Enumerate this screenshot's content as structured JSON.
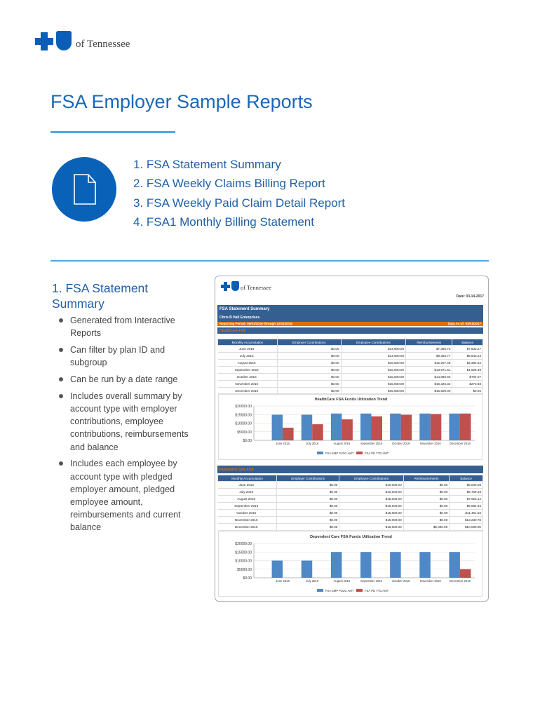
{
  "logo": {
    "text": "of Tennessee"
  },
  "page_title": "FSA Employer Sample Reports",
  "toc": [
    "1. FSA Statement Summary",
    "2. FSA Weekly Claims Billing Report",
    "3. FSA Weekly Paid Claim Detail Report",
    "4. FSA1 Monthly Billing Statement"
  ],
  "section": {
    "title": "1. FSA Statement Summary",
    "bullets": [
      "Generated from Interactive Reports",
      "Can filter by plan ID and subgroup",
      "Can be run by a date range",
      "Includes overall summary by account type with employer contributions, employee contributions, reimbursements and balance",
      "Includes each employee by account type with pledged employer amount, pledged employee amount, reimbursements and current balance"
    ]
  },
  "report": {
    "logo_text": "of Tennessee",
    "date": "Date: 03-14-2017",
    "title": "FSA Statement Summary",
    "company": "Chris B Hall Enterprises",
    "period": "Reporting Period: 06/01/2016 through 12/31/2016",
    "data_as_of": "Data As of: 03/01/2017",
    "columns": [
      "Monthly Accumulation",
      "Employer Contributions",
      "Employee Contributions",
      "Reimbursements",
      "Balance"
    ],
    "healthcare": {
      "label": "HealthCare FSA",
      "rows": [
        [
          "June 2016",
          "$0.00",
          "$14,900.00",
          "$7,366.73",
          "$7,533.27"
        ],
        [
          "July 2016",
          "$0.00",
          "$14,900.00",
          "$9,356.77",
          "$5,543.23"
        ],
        [
          "August 2016",
          "$0.00",
          "$15,600.00",
          "$12,207.48",
          "$3,392.52"
        ],
        [
          "September 2016",
          "$0.00",
          "$15,600.00",
          "$13,971.61",
          "$1,628.39"
        ],
        [
          "October 2016",
          "$0.00",
          "$15,600.00",
          "$14,895.93",
          "$704.07"
        ],
        [
          "November 2016",
          "$0.00",
          "$15,600.00",
          "$15,326.32",
          "$273.68"
        ],
        [
          "December 2016",
          "$0.00",
          "$15,600.00",
          "$15,600.00",
          "$0.00"
        ]
      ]
    },
    "dependent": {
      "label": "Dependent Care FSA",
      "rows": [
        [
          "June 2016",
          "$0.00",
          "$10,000.00",
          "$0.00",
          "$5,000.06"
        ],
        [
          "July 2016",
          "$0.00",
          "$10,000.00",
          "$0.00",
          "$5,769.28"
        ],
        [
          "August 2016",
          "$0.00",
          "$15,000.00",
          "$0.00",
          "$7,923.12"
        ],
        [
          "September 2016",
          "$0.00",
          "$15,000.00",
          "$0.00",
          "$9,692.34"
        ],
        [
          "October 2016",
          "$0.00",
          "$15,000.00",
          "$0.00",
          "$11,461.56"
        ],
        [
          "November 2016",
          "$0.00",
          "$15,000.00",
          "$0.00",
          "$13,230.78"
        ],
        [
          "December 2016",
          "$0.00",
          "$15,000.00",
          "$5,000.00",
          "$10,000.00"
        ]
      ]
    }
  },
  "chart_data": [
    {
      "type": "bar",
      "title": "HealthCare FSA Funds Utilization Trend",
      "categories": [
        "June 2016",
        "July 2016",
        "August 2016",
        "September 2016",
        "October 2016",
        "November 2016",
        "December 2016"
      ],
      "yticks": [
        "$0.00",
        "$5000.00",
        "$10000.00",
        "$15000.00",
        "$20000.00"
      ],
      "ylim": [
        0,
        20000
      ],
      "series": [
        {
          "name": "FSA EMP PLDG AMT",
          "color": "#4f88c6",
          "values": [
            14900,
            14900,
            15600,
            15600,
            15600,
            15600,
            15600
          ]
        },
        {
          "name": "FSA PD YTD AMT",
          "color": "#c0504d",
          "values": [
            7367,
            9357,
            12207,
            13972,
            14896,
            15326,
            15600
          ]
        }
      ]
    },
    {
      "type": "bar",
      "title": "Dependent Care FSA Funds Utilization Trend",
      "categories": [
        "June 2016",
        "July 2016",
        "August 2016",
        "September 2016",
        "October 2016",
        "November 2016",
        "December 2016"
      ],
      "yticks": [
        "$0.00",
        "$5000.00",
        "$10000.00",
        "$15000.00",
        "$20000.00"
      ],
      "ylim": [
        0,
        20000
      ],
      "series": [
        {
          "name": "FSA EMP PLDG AMT",
          "color": "#4f88c6",
          "values": [
            10000,
            10000,
            15000,
            15000,
            15000,
            15000,
            15000
          ]
        },
        {
          "name": "FSA PD YTD AMT",
          "color": "#c0504d",
          "values": [
            0,
            0,
            0,
            0,
            0,
            0,
            5000
          ]
        }
      ]
    }
  ]
}
